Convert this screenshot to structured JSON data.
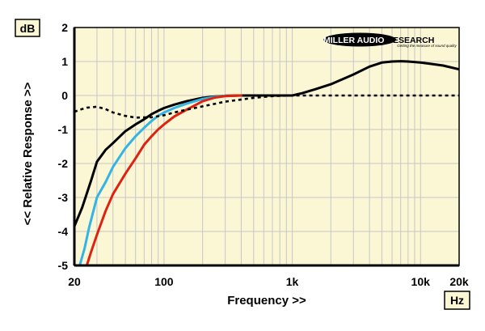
{
  "chart_data": {
    "type": "line",
    "xlabel": "Frequency >>",
    "ylabel": "<< Relative Response >>",
    "y_unit": "dB",
    "x_unit": "Hz",
    "x_scale": "log",
    "xlim": [
      20,
      20000
    ],
    "ylim": [
      -5,
      2
    ],
    "x_ticks": [
      {
        "value": 20,
        "label": "20"
      },
      {
        "value": 100,
        "label": "100"
      },
      {
        "value": 1000,
        "label": "1k"
      },
      {
        "value": 10000,
        "label": "10k"
      },
      {
        "value": 20000,
        "label": "20k"
      }
    ],
    "y_ticks": [
      {
        "value": 2,
        "label": "2"
      },
      {
        "value": 1,
        "label": "1"
      },
      {
        "value": 0,
        "label": "0"
      },
      {
        "value": -1,
        "label": "-1"
      },
      {
        "value": -2,
        "label": "-2"
      },
      {
        "value": -3,
        "label": "-3"
      },
      {
        "value": -4,
        "label": "-4"
      },
      {
        "value": -5,
        "label": "-5"
      }
    ],
    "grid": true,
    "colors": {
      "plot_background": "#fbf6d3",
      "grid": "#c7c7c7",
      "axis": "#000000"
    },
    "series": [
      {
        "color": "#000000",
        "dash": "solid",
        "x": [
          20,
          23,
          27,
          30,
          35,
          40,
          50,
          60,
          70,
          80,
          90,
          100,
          120,
          150,
          200,
          250,
          300,
          400,
          500,
          700,
          1000,
          1200,
          1500,
          2000,
          3000,
          4000,
          5000,
          6000,
          7000,
          8000,
          10000,
          12000,
          15000,
          20000
        ],
        "y": [
          -3.85,
          -3.3,
          -2.5,
          -1.95,
          -1.6,
          -1.4,
          -1.05,
          -0.85,
          -0.7,
          -0.55,
          -0.45,
          -0.37,
          -0.27,
          -0.17,
          -0.07,
          -0.03,
          -0.01,
          0.0,
          0.0,
          0.0,
          0.0,
          0.07,
          0.18,
          0.33,
          0.62,
          0.85,
          0.97,
          1.0,
          1.01,
          1.0,
          0.97,
          0.93,
          0.88,
          0.77
        ]
      },
      {
        "color": "#33b4e6",
        "dash": "solid",
        "x": [
          22,
          24,
          26,
          30,
          35,
          40,
          50,
          60,
          70,
          80,
          90,
          100,
          120,
          150,
          200,
          250,
          300
        ],
        "y": [
          -5.0,
          -4.5,
          -3.9,
          -3.0,
          -2.55,
          -2.1,
          -1.55,
          -1.2,
          -0.95,
          -0.75,
          -0.6,
          -0.5,
          -0.37,
          -0.24,
          -0.1,
          -0.04,
          -0.01
        ]
      },
      {
        "color": "#dd2211",
        "dash": "solid",
        "x": [
          25,
          27,
          30,
          35,
          40,
          50,
          60,
          70,
          80,
          90,
          100,
          120,
          150,
          200,
          250,
          300,
          400
        ],
        "y": [
          -5.0,
          -4.6,
          -4.1,
          -3.4,
          -2.9,
          -2.3,
          -1.85,
          -1.45,
          -1.2,
          -1.0,
          -0.85,
          -0.62,
          -0.42,
          -0.17,
          -0.06,
          -0.02,
          0.0
        ]
      },
      {
        "color": "#000000",
        "dash": "dashed",
        "x": [
          20,
          22,
          25,
          30,
          35,
          40,
          50,
          60,
          80,
          100,
          120,
          150,
          200,
          300,
          500,
          700,
          1000,
          2000,
          3000,
          5000,
          10000,
          20000
        ],
        "y": [
          -0.48,
          -0.42,
          -0.36,
          -0.33,
          -0.4,
          -0.5,
          -0.6,
          -0.65,
          -0.64,
          -0.58,
          -0.5,
          -0.42,
          -0.32,
          -0.18,
          -0.07,
          -0.02,
          0.0,
          0.0,
          0.0,
          0.0,
          0.0,
          0.0
        ]
      }
    ],
    "logo": {
      "name": "MILLER AUDIO RESEARCH",
      "tagline": "Getting the measure of sound quality"
    }
  }
}
